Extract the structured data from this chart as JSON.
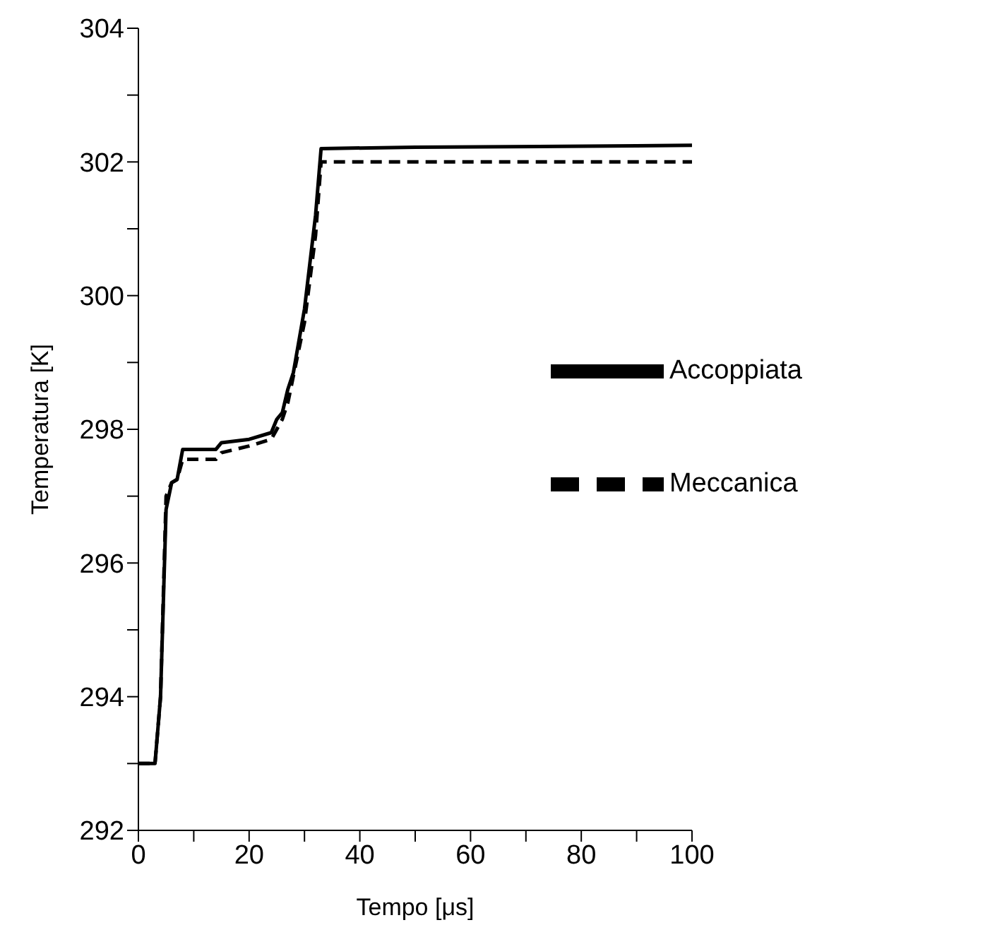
{
  "chart_data": {
    "type": "line",
    "xlabel": "Tempo [μs]",
    "ylabel": "Temperatura [K]",
    "xlim": [
      0,
      100
    ],
    "ylim": [
      292,
      304
    ],
    "xticks": [
      0,
      {
        "value": 10,
        "label": null
      },
      20,
      {
        "value": 30,
        "label": null
      },
      40,
      {
        "value": 50,
        "label": null
      },
      60,
      {
        "value": 70,
        "label": null
      },
      80,
      {
        "value": 90,
        "label": null
      },
      100
    ],
    "yticks": [
      292,
      {
        "value": 293,
        "label": null
      },
      294,
      {
        "value": 295,
        "label": null
      },
      296,
      {
        "value": 297,
        "label": null
      },
      298,
      {
        "value": 299,
        "label": null
      },
      300,
      {
        "value": 301,
        "label": null
      },
      302,
      {
        "value": 303,
        "label": null
      },
      304
    ],
    "grid": false,
    "legend": "right",
    "marker": "none",
    "series": [
      {
        "name": "Accoppiata",
        "color": "#000000",
        "line_style": "solid",
        "x": [
          0,
          3,
          4,
          5,
          6,
          7,
          8,
          14,
          15,
          20,
          24,
          25,
          26,
          27,
          28,
          30,
          32,
          33,
          50,
          90,
          100
        ],
        "values": [
          293,
          293,
          294,
          296.8,
          297.2,
          297.25,
          297.7,
          297.7,
          297.8,
          297.85,
          297.95,
          298.15,
          298.25,
          298.6,
          298.85,
          299.8,
          301.2,
          302.2,
          302.22,
          302.24,
          302.25
        ]
      },
      {
        "name": "Meccanica",
        "color": "#000000",
        "line_style": "dashed",
        "x": [
          0,
          3,
          4,
          5,
          6,
          7,
          8,
          14,
          15,
          20,
          24,
          25,
          26,
          27,
          28,
          30,
          32,
          33,
          100
        ],
        "values": [
          293,
          293,
          294,
          297,
          297.2,
          297.25,
          297.55,
          297.55,
          297.65,
          297.75,
          297.85,
          298,
          298.15,
          298.4,
          298.8,
          299.6,
          300.9,
          302,
          302
        ]
      }
    ]
  }
}
